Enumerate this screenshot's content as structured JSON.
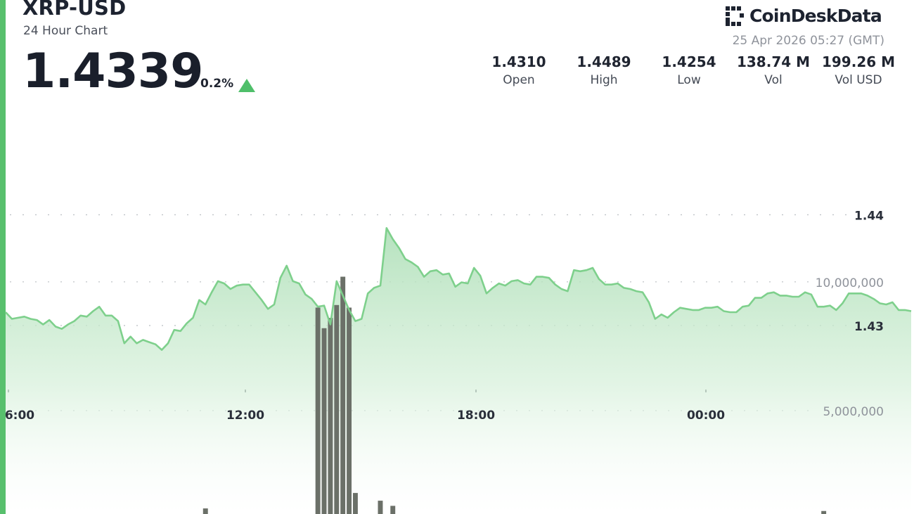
{
  "header": {
    "pair": "XRP-USD",
    "subtitle": "24 Hour Chart",
    "price": "1.4339",
    "change": "0.2%",
    "change_direction": "up",
    "brand": "CoinDeskData",
    "timestamp": "25 Apr 2026 05:27 (GMT)"
  },
  "stats": [
    {
      "value": "1.4310",
      "label": "Open"
    },
    {
      "value": "1.4489",
      "label": "High"
    },
    {
      "value": "1.4254",
      "label": "Low"
    },
    {
      "value": "138.74 M",
      "label": "Vol"
    },
    {
      "value": "199.26 M",
      "label": "Vol USD"
    }
  ],
  "colors": {
    "accent": "#58c06d",
    "line": "#7ed08c",
    "area": "#c9ebcf",
    "volume_bar": "#6b7068",
    "arrow_up": "#4fbf6a"
  },
  "chart_data": {
    "type": "line",
    "title": "",
    "xlabel": "",
    "ylabel": "",
    "x_ticks": [
      "6:00",
      "12:00",
      "18:00",
      "00:00"
    ],
    "price": {
      "y_ticks": [
        "1.44",
        "1.43"
      ],
      "ylim": [
        1.4213,
        1.4505
      ],
      "values": [
        1.4312,
        1.4306,
        1.4307,
        1.4308,
        1.4306,
        1.4305,
        1.4301,
        1.4305,
        1.4299,
        1.4297,
        1.4301,
        1.4304,
        1.4309,
        1.4308,
        1.4313,
        1.4317,
        1.4309,
        1.4309,
        1.4304,
        1.4284,
        1.429,
        1.4284,
        1.4287,
        1.4285,
        1.4283,
        1.4278,
        1.4284,
        1.4296,
        1.4295,
        1.4302,
        1.4307,
        1.4323,
        1.4319,
        1.433,
        1.434,
        1.4338,
        1.4333,
        1.4336,
        1.4337,
        1.4337,
        1.433,
        1.4323,
        1.4315,
        1.4319,
        1.4343,
        1.4354,
        1.434,
        1.4338,
        1.4328,
        1.4324,
        1.4317,
        1.4318,
        1.4301,
        1.434,
        1.4327,
        1.4314,
        1.4304,
        1.4306,
        1.4329,
        1.4334,
        1.4336,
        1.4388,
        1.4378,
        1.437,
        1.436,
        1.4357,
        1.4353,
        1.4344,
        1.4349,
        1.435,
        1.4346,
        1.4347,
        1.4335,
        1.4339,
        1.4338,
        1.4352,
        1.4345,
        1.4329,
        1.4334,
        1.4338,
        1.4336,
        1.434,
        1.4341,
        1.4338,
        1.4337,
        1.4344,
        1.4344,
        1.4343,
        1.4337,
        1.4333,
        1.4331,
        1.435,
        1.4349,
        1.435,
        1.4352,
        1.4342,
        1.4337,
        1.4337,
        1.4338,
        1.4334,
        1.4333,
        1.4331,
        1.433,
        1.4321,
        1.4306,
        1.431,
        1.4307,
        1.4312,
        1.4316,
        1.4315,
        1.4314,
        1.4314,
        1.4316,
        1.4316,
        1.4317,
        1.4313,
        1.4312,
        1.4312,
        1.4317,
        1.4318,
        1.4325,
        1.4325,
        1.4329,
        1.433,
        1.4327,
        1.4327,
        1.4326,
        1.4326,
        1.433,
        1.4328,
        1.4317,
        1.4317,
        1.4318,
        1.4314,
        1.432,
        1.4329,
        1.4329,
        1.4329,
        1.4327,
        1.4324,
        1.432,
        1.4319,
        1.4321,
        1.4314,
        1.4314,
        1.4313
      ]
    },
    "volume": {
      "y_ticks": [
        "10,000,000",
        "5,000,000"
      ],
      "ylim": [
        0,
        13000000
      ],
      "values": [
        0,
        0,
        0,
        0,
        0,
        0,
        0,
        0,
        0,
        0,
        0,
        0,
        0,
        0,
        0,
        0,
        0,
        0,
        0,
        0,
        0,
        0,
        0,
        0,
        0,
        0,
        0,
        0,
        0,
        0,
        0,
        0,
        1200000,
        300000,
        0,
        100000,
        0,
        0,
        700000,
        300000,
        0,
        0,
        0,
        0,
        700000,
        500000,
        0,
        500000,
        200000,
        0,
        9000000,
        8200000,
        8600000,
        9100000,
        10200000,
        9000000,
        1800000,
        0,
        200000,
        0,
        1500000,
        300000,
        1300000,
        0,
        0,
        0,
        0,
        0,
        0,
        0,
        0,
        0,
        0,
        0,
        100000,
        0,
        0,
        0,
        0,
        0,
        0,
        0,
        0,
        0,
        0,
        0,
        200000,
        0,
        0,
        0,
        0,
        0,
        0,
        300000,
        0,
        0,
        0,
        0,
        0,
        0,
        0,
        0,
        0,
        0,
        0,
        0,
        0,
        0,
        0,
        0,
        0,
        0,
        0,
        0,
        0,
        0,
        0,
        0,
        0,
        0,
        0,
        0,
        0,
        0,
        0,
        0,
        0,
        0,
        0,
        0,
        0,
        1100000,
        0,
        0,
        0,
        0,
        0,
        0,
        0,
        0,
        0,
        0,
        0,
        0,
        0,
        0,
        0,
        0
      ]
    }
  }
}
